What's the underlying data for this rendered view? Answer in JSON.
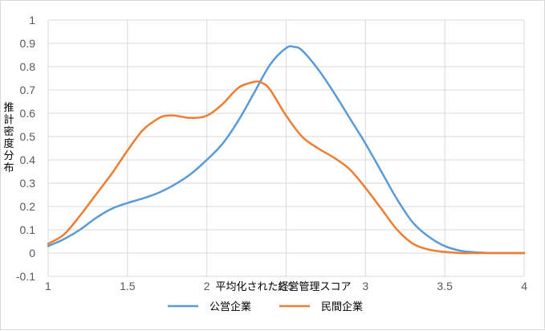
{
  "chart_data": {
    "type": "line",
    "title": "",
    "xlabel": "平均化された経営管理スコア",
    "ylabel": "推計密度分布",
    "xlim": [
      1,
      4
    ],
    "ylim": [
      -0.1,
      1
    ],
    "x_ticks": [
      "1",
      "1.5",
      "2",
      "2.5",
      "3",
      "3.5",
      "4"
    ],
    "y_ticks": [
      "-0.1",
      "0",
      "0.1",
      "0.2",
      "0.3",
      "0.4",
      "0.5",
      "0.6",
      "0.7",
      "0.8",
      "0.9",
      "1"
    ],
    "grid": true,
    "legend_position": "bottom",
    "series": [
      {
        "name": "公営企業",
        "color": "#5b9bd5",
        "x": [
          1.0,
          1.1,
          1.2,
          1.3,
          1.4,
          1.5,
          1.6,
          1.7,
          1.8,
          1.9,
          2.0,
          2.1,
          2.2,
          2.3,
          2.4,
          2.5,
          2.55,
          2.6,
          2.7,
          2.8,
          2.9,
          3.0,
          3.1,
          3.2,
          3.3,
          3.4,
          3.5,
          3.6,
          3.7,
          3.8,
          3.9,
          4.0
        ],
        "values": [
          0.03,
          0.06,
          0.1,
          0.15,
          0.19,
          0.215,
          0.235,
          0.26,
          0.295,
          0.34,
          0.4,
          0.47,
          0.57,
          0.69,
          0.81,
          0.88,
          0.885,
          0.87,
          0.79,
          0.69,
          0.58,
          0.47,
          0.35,
          0.23,
          0.13,
          0.07,
          0.03,
          0.01,
          0.003,
          0.0,
          0.0,
          0.0
        ]
      },
      {
        "name": "民間企業",
        "color": "#ed7d31",
        "x": [
          1.0,
          1.1,
          1.2,
          1.3,
          1.4,
          1.5,
          1.6,
          1.7,
          1.75,
          1.8,
          1.9,
          2.0,
          2.1,
          2.2,
          2.3,
          2.35,
          2.4,
          2.5,
          2.6,
          2.7,
          2.8,
          2.9,
          3.0,
          3.1,
          3.2,
          3.3,
          3.4,
          3.5,
          3.6,
          3.7,
          3.8,
          3.9,
          4.0
        ],
        "values": [
          0.04,
          0.08,
          0.16,
          0.25,
          0.34,
          0.44,
          0.53,
          0.58,
          0.59,
          0.59,
          0.58,
          0.59,
          0.64,
          0.71,
          0.735,
          0.73,
          0.7,
          0.59,
          0.5,
          0.45,
          0.41,
          0.36,
          0.28,
          0.19,
          0.1,
          0.04,
          0.015,
          0.005,
          0.0,
          0.0,
          0.0,
          0.0,
          0.0
        ]
      }
    ]
  }
}
